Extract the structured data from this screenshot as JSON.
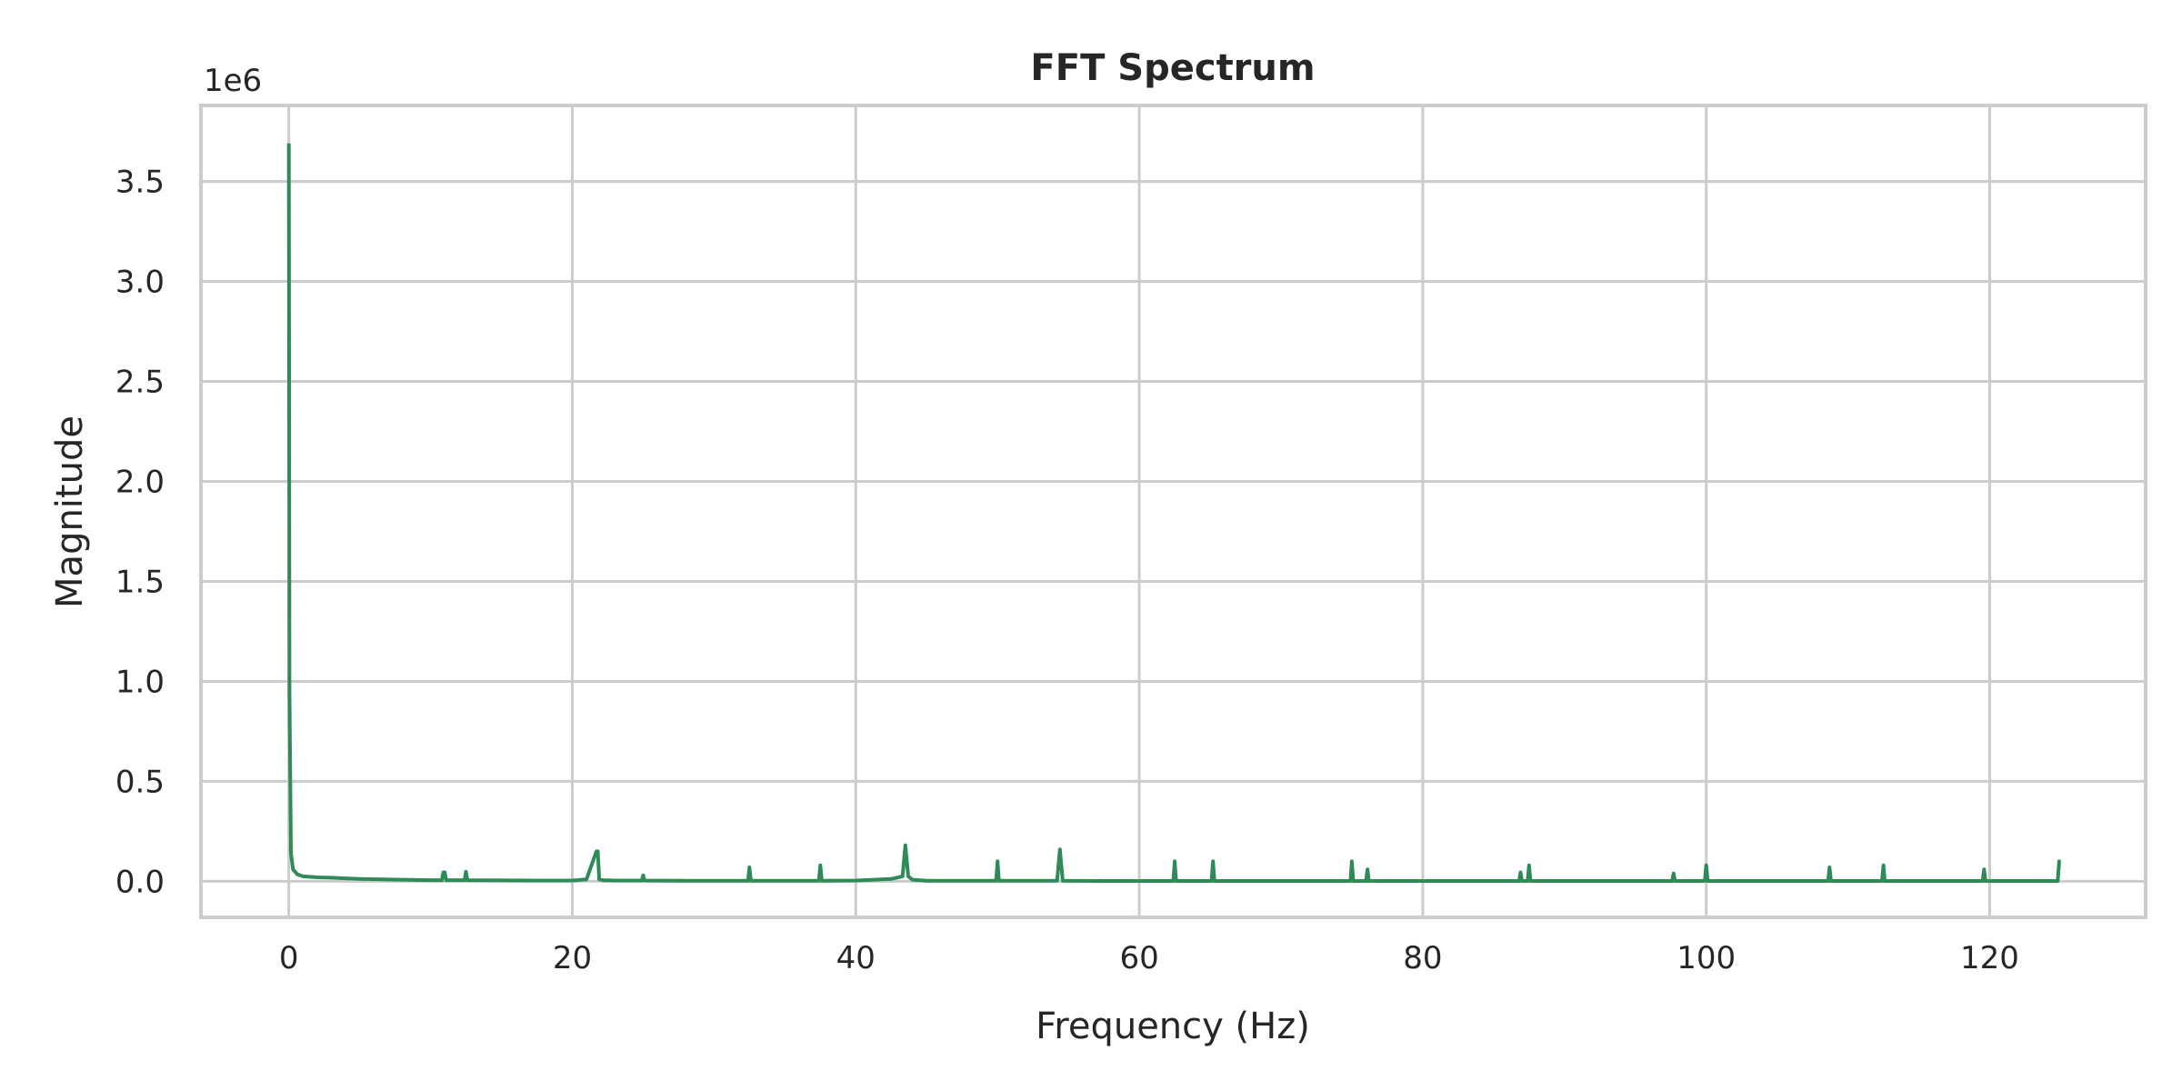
{
  "chart_data": {
    "type": "line",
    "title": "FFT Spectrum",
    "xlabel": "Frequency (Hz)",
    "ylabel": "Magnitude",
    "y_offset_label": "1e6",
    "xlim": [
      -6.2,
      131
    ],
    "ylim": [
      -0.18,
      3.88
    ],
    "xticks": [
      0,
      20,
      40,
      60,
      80,
      100,
      120
    ],
    "xtick_labels": [
      "0",
      "20",
      "40",
      "60",
      "80",
      "100",
      "120"
    ],
    "yticks": [
      0.0,
      0.5,
      1.0,
      1.5,
      2.0,
      2.5,
      3.0,
      3.5
    ],
    "ytick_labels": [
      "0.0",
      "0.5",
      "1.0",
      "1.5",
      "2.0",
      "2.5",
      "3.0",
      "3.5"
    ],
    "grid": true,
    "line_color": "#2e8b57",
    "series": [
      {
        "x": [
          0,
          0.05,
          0.15,
          0.3,
          0.6,
          1.0,
          2.0,
          3.0,
          5.0,
          8.0,
          10.0,
          10.8,
          10.9,
          11.0,
          11.1,
          12.0,
          12.4,
          12.5,
          12.6,
          14.0,
          17.0,
          20.0,
          21.0,
          21.7,
          21.8,
          21.9,
          22.2,
          23.0,
          24.9,
          25.0,
          25.1,
          28.0,
          32.4,
          32.5,
          32.6,
          35.0,
          37.4,
          37.5,
          37.6,
          40.0,
          42.5,
          43.3,
          43.5,
          43.7,
          44.0,
          45.0,
          49.9,
          50.0,
          50.1,
          52.0,
          54.2,
          54.4,
          54.6,
          57.0,
          62.4,
          62.5,
          62.6,
          65.1,
          65.2,
          65.3,
          70.0,
          74.9,
          75.0,
          75.1,
          76.0,
          76.1,
          76.2,
          80.0,
          86.8,
          86.9,
          87.0,
          87.4,
          87.5,
          87.6,
          92.0,
          97.6,
          97.7,
          97.8,
          99.9,
          100.0,
          100.1,
          104.0,
          108.6,
          108.7,
          108.8,
          112.4,
          112.5,
          112.6,
          116.0,
          119.5,
          119.6,
          119.7,
          123.0,
          124.8,
          124.9,
          125.0
        ],
        "values": [
          3.69,
          0.95,
          0.14,
          0.06,
          0.035,
          0.025,
          0.02,
          0.018,
          0.012,
          0.008,
          0.006,
          0.006,
          0.045,
          0.045,
          0.006,
          0.006,
          0.006,
          0.048,
          0.006,
          0.005,
          0.004,
          0.004,
          0.01,
          0.15,
          0.15,
          0.01,
          0.006,
          0.004,
          0.004,
          0.03,
          0.004,
          0.003,
          0.003,
          0.07,
          0.003,
          0.003,
          0.003,
          0.08,
          0.003,
          0.004,
          0.012,
          0.025,
          0.18,
          0.025,
          0.008,
          0.003,
          0.003,
          0.1,
          0.003,
          0.003,
          0.003,
          0.16,
          0.003,
          0.002,
          0.002,
          0.1,
          0.002,
          0.002,
          0.1,
          0.002,
          0.002,
          0.002,
          0.1,
          0.002,
          0.002,
          0.06,
          0.002,
          0.002,
          0.002,
          0.045,
          0.002,
          0.002,
          0.08,
          0.002,
          0.002,
          0.002,
          0.04,
          0.002,
          0.002,
          0.08,
          0.002,
          0.002,
          0.002,
          0.07,
          0.002,
          0.002,
          0.08,
          0.002,
          0.002,
          0.002,
          0.06,
          0.002,
          0.002,
          0.002,
          0.1,
          0.1
        ]
      }
    ]
  }
}
